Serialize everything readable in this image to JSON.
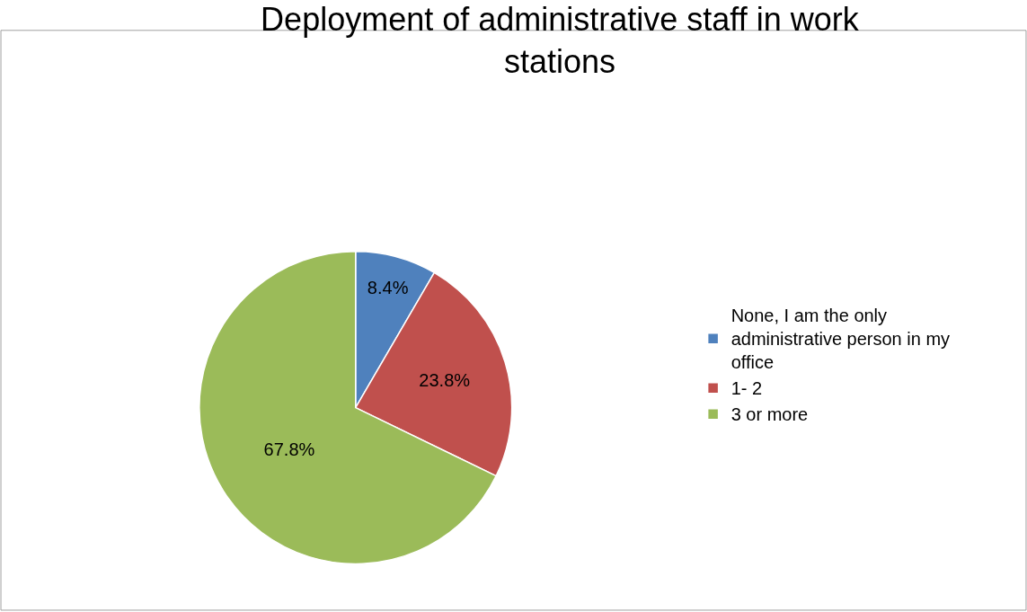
{
  "chart_data": {
    "type": "pie",
    "title": "Deployment of administrative staff in work stations",
    "categories": [
      "None, I am the only administrative person in my office",
      "1- 2",
      "3 or more"
    ],
    "values": [
      8.4,
      23.8,
      67.8
    ],
    "value_labels": [
      "8.4%",
      "23.8%",
      "67.8%"
    ],
    "colors": [
      "#4f81bd",
      "#c0504d",
      "#9bbb59"
    ],
    "legend": "right"
  }
}
